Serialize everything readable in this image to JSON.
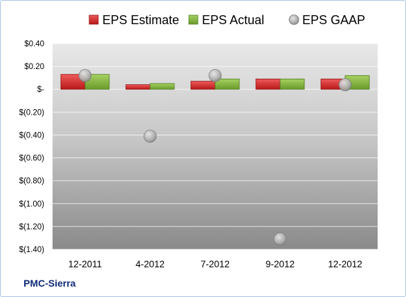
{
  "colors": {
    "estimate": "#d42a2a",
    "actual": "#7fb33a",
    "gaap": "#b4b4b4",
    "company_text": "#0f2a78"
  },
  "company": "PMC-Sierra",
  "chart_data": {
    "type": "bar",
    "categories": [
      "12-2011",
      "4-2012",
      "7-2012",
      "9-2012",
      "12-2012"
    ],
    "series": [
      {
        "name": "EPS Estimate",
        "kind": "bar",
        "values": [
          0.13,
          0.04,
          0.07,
          0.09,
          0.09
        ]
      },
      {
        "name": "EPS Actual",
        "kind": "bar",
        "values": [
          0.13,
          0.05,
          0.09,
          0.09,
          0.12
        ]
      },
      {
        "name": "EPS GAAP",
        "kind": "scatter",
        "values": [
          0.12,
          -0.41,
          0.12,
          -1.31,
          0.04
        ]
      }
    ],
    "ylim": [
      -1.4,
      0.4
    ],
    "yticks": [
      0.4,
      0.2,
      0.0,
      -0.2,
      -0.4,
      -0.6,
      -0.8,
      -1.0,
      -1.2,
      -1.4
    ],
    "yticklabels": [
      "$0.40",
      "$0.20",
      "$-",
      "$(0.20)",
      "$(0.40)",
      "$(0.60)",
      "$(0.80)",
      "$(1.00)",
      "$(1.20)",
      "$(1.40)"
    ],
    "grid": true,
    "legend": "top"
  }
}
